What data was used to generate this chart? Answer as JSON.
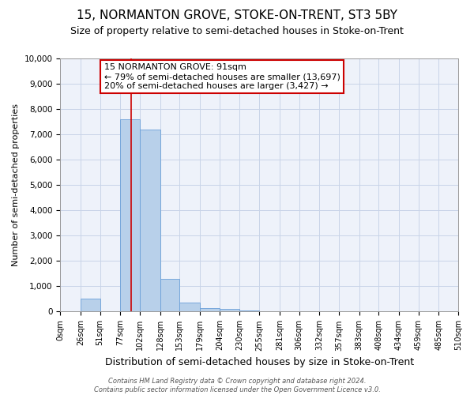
{
  "title": "15, NORMANTON GROVE, STOKE-ON-TRENT, ST3 5BY",
  "subtitle": "Size of property relative to semi-detached houses in Stoke-on-Trent",
  "xlabel": "Distribution of semi-detached houses by size in Stoke-on-Trent",
  "ylabel": "Number of semi-detached properties",
  "footnote": "Contains HM Land Registry data © Crown copyright and database right 2024.\nContains public sector information licensed under the Open Government Licence v3.0.",
  "bin_edges": [
    0,
    26,
    51,
    77,
    102,
    128,
    153,
    179,
    204,
    230,
    255,
    281,
    306,
    332,
    357,
    383,
    408,
    434,
    459,
    485,
    510
  ],
  "bin_counts": [
    0,
    500,
    0,
    7600,
    7200,
    1300,
    350,
    150,
    100,
    50,
    0,
    0,
    0,
    0,
    0,
    0,
    0,
    0,
    0,
    0
  ],
  "bar_color": "#b8d0ea",
  "bar_edgecolor": "#6a9fd8",
  "property_size": 91,
  "property_line_color": "#cc0000",
  "annotation_box_edgecolor": "#cc0000",
  "annotation_line1": "15 NORMANTON GROVE: 91sqm",
  "annotation_line2": "← 79% of semi-detached houses are smaller (13,697)",
  "annotation_line3": "20% of semi-detached houses are larger (3,427) →",
  "ylim": [
    0,
    10000
  ],
  "yticks": [
    0,
    1000,
    2000,
    3000,
    4000,
    5000,
    6000,
    7000,
    8000,
    9000,
    10000
  ],
  "tick_labels": [
    "0sqm",
    "26sqm",
    "51sqm",
    "77sqm",
    "102sqm",
    "128sqm",
    "153sqm",
    "179sqm",
    "204sqm",
    "230sqm",
    "255sqm",
    "281sqm",
    "306sqm",
    "332sqm",
    "357sqm",
    "383sqm",
    "408sqm",
    "434sqm",
    "459sqm",
    "485sqm",
    "510sqm"
  ],
  "grid_color": "#c8d4e8",
  "bg_color": "#eef2fa",
  "title_fontsize": 11,
  "subtitle_fontsize": 9,
  "xlabel_fontsize": 9,
  "ylabel_fontsize": 8
}
